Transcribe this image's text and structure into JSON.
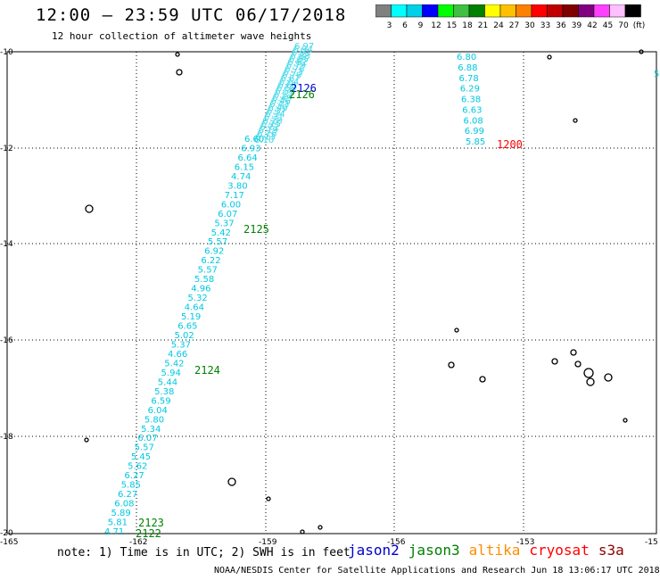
{
  "title": "12:00 – 23:59 UTC 06/17/2018",
  "subtitle": "12 hour collection of altimeter wave heights",
  "colorbar": {
    "colors": [
      "#808080",
      "#00ffff",
      "#00d0e8",
      "#0000ff",
      "#00ff00",
      "#40c040",
      "#008000",
      "#ffff00",
      "#ffc000",
      "#ff8000",
      "#ff0000",
      "#c00000",
      "#800000",
      "#800080",
      "#ff40ff",
      "#ffc0ff",
      "#000000"
    ],
    "labels": [
      "3",
      "6",
      "9",
      "12",
      "15",
      "18",
      "21",
      "24",
      "27",
      "30",
      "33",
      "36",
      "39",
      "42",
      "45",
      "70",
      "(ft)"
    ]
  },
  "chart_data": {
    "type": "scatter",
    "x_ticks": [
      "-165",
      "-162",
      "-159",
      "-156",
      "-153",
      "-15"
    ],
    "y_ticks": [
      "-10",
      "-12",
      "-14",
      "-16",
      "-18",
      "-20"
    ],
    "track_main": {
      "satellite": "jason3",
      "values": [
        "4.71",
        "5.81",
        "5.89",
        "6.08",
        "6.27",
        "5.85",
        "6.27",
        "5.62",
        "5.45",
        "5.57",
        "6.07",
        "5.34",
        "5.80",
        "6.04",
        "6.59",
        "5.38",
        "5.44",
        "5.94",
        "5.42",
        "4.66",
        "5.37",
        "5.02",
        "6.65",
        "5.19",
        "4.64",
        "5.32",
        "4.96",
        "5.58",
        "5.57",
        "6.22",
        "6.92",
        "5.57",
        "5.42",
        "5.37",
        "6.07",
        "6.00",
        "7.17",
        "3.80",
        "4.74",
        "6.15",
        "6.64",
        "6.93",
        "6.60"
      ]
    },
    "track_east": {
      "satellite": "cryosat",
      "values": [
        "6.80",
        "6.88",
        "6.78",
        "6.29",
        "6.38",
        "6.63",
        "6.08",
        "6.99",
        "5.85"
      ]
    },
    "time_labels": [
      {
        "text": "2126",
        "satellite": "jason2"
      },
      {
        "text": "2126",
        "satellite": "jason3"
      },
      {
        "text": "2125",
        "satellite": "jason3"
      },
      {
        "text": "2124",
        "satellite": "jason3"
      },
      {
        "text": "2123",
        "satellite": "jason3"
      },
      {
        "text": "2122",
        "satellite": "jason3"
      },
      {
        "text": "1200",
        "satellite": "cryosat"
      }
    ],
    "edge_label": "5"
  },
  "note": "note: 1) Time is in UTC; 2) SWH is in feet",
  "legend": [
    {
      "name": "jason2",
      "color": "#0000cc"
    },
    {
      "name": "jason3",
      "color": "#008000"
    },
    {
      "name": "altika",
      "color": "#ff8c00"
    },
    {
      "name": "cryosat",
      "color": "#ff0000"
    },
    {
      "name": "s3a",
      "color": "#8b0000"
    }
  ],
  "credit": "NOAA/NESDIS Center for Satellite Applications and Research    Jun 18 13:06:17 UTC 2018"
}
